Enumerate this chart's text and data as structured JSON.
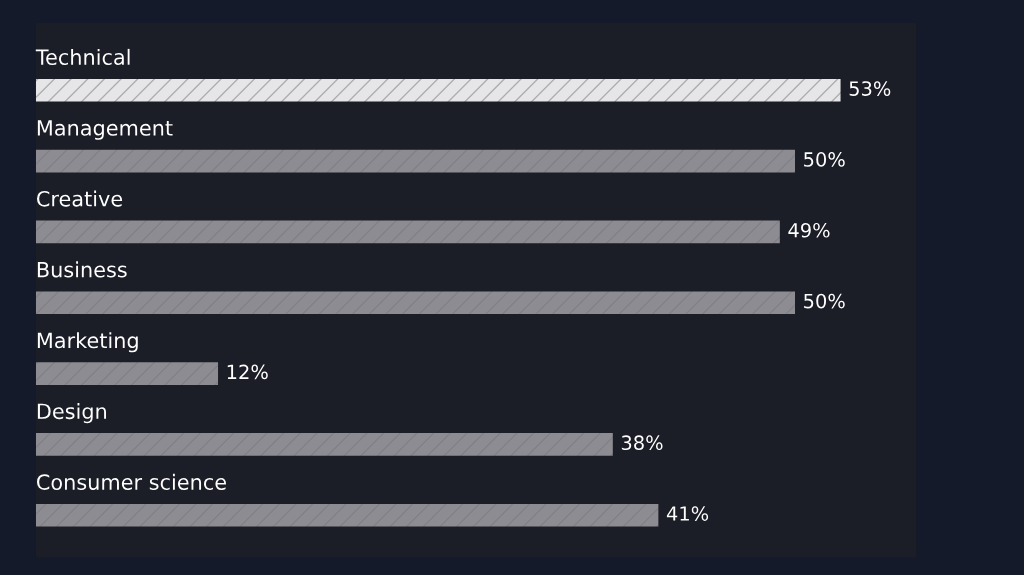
{
  "chart_data": {
    "type": "bar",
    "orientation": "horizontal",
    "categories": [
      "Technical",
      "Management",
      "Creative",
      "Business",
      "Marketing",
      "Design",
      "Consumer science"
    ],
    "values": [
      53,
      50,
      49,
      50,
      12,
      38,
      41
    ],
    "value_labels": [
      "53%",
      "50%",
      "49%",
      "50%",
      "12%",
      "38%",
      "41%"
    ],
    "colors": [
      "#e6e6e8",
      "#8c8c92",
      "#8c8c92",
      "#8c8c92",
      "#8c8c92",
      "#8c8c92",
      "#8c8c92"
    ],
    "xlim": [
      0,
      58
    ]
  }
}
